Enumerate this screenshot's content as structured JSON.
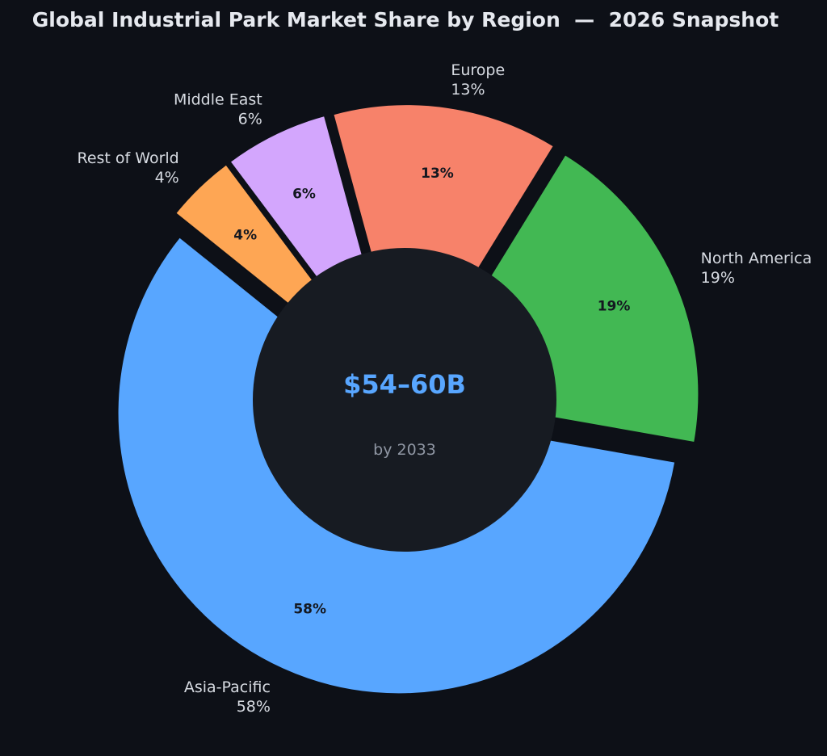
{
  "chart_data": {
    "type": "pie",
    "title": "Global Industrial Park Market Share by Region  —  2026 Snapshot",
    "categories": [
      "North America",
      "Europe",
      "Middle East",
      "Rest of World",
      "Asia-Pacific"
    ],
    "values": [
      19,
      13,
      6,
      4,
      58
    ],
    "value_labels": [
      "19%",
      "13%",
      "6%",
      "4%",
      "58%"
    ],
    "colors": [
      "#42b853",
      "#f7826a",
      "#d3a6fd",
      "#fea654",
      "#58a6ff"
    ],
    "donut": true,
    "exploded": true,
    "center_text": {
      "value": "$54–60B",
      "subtitle": "by 2033",
      "value_color": "#58a6ff"
    },
    "legend": "none"
  }
}
